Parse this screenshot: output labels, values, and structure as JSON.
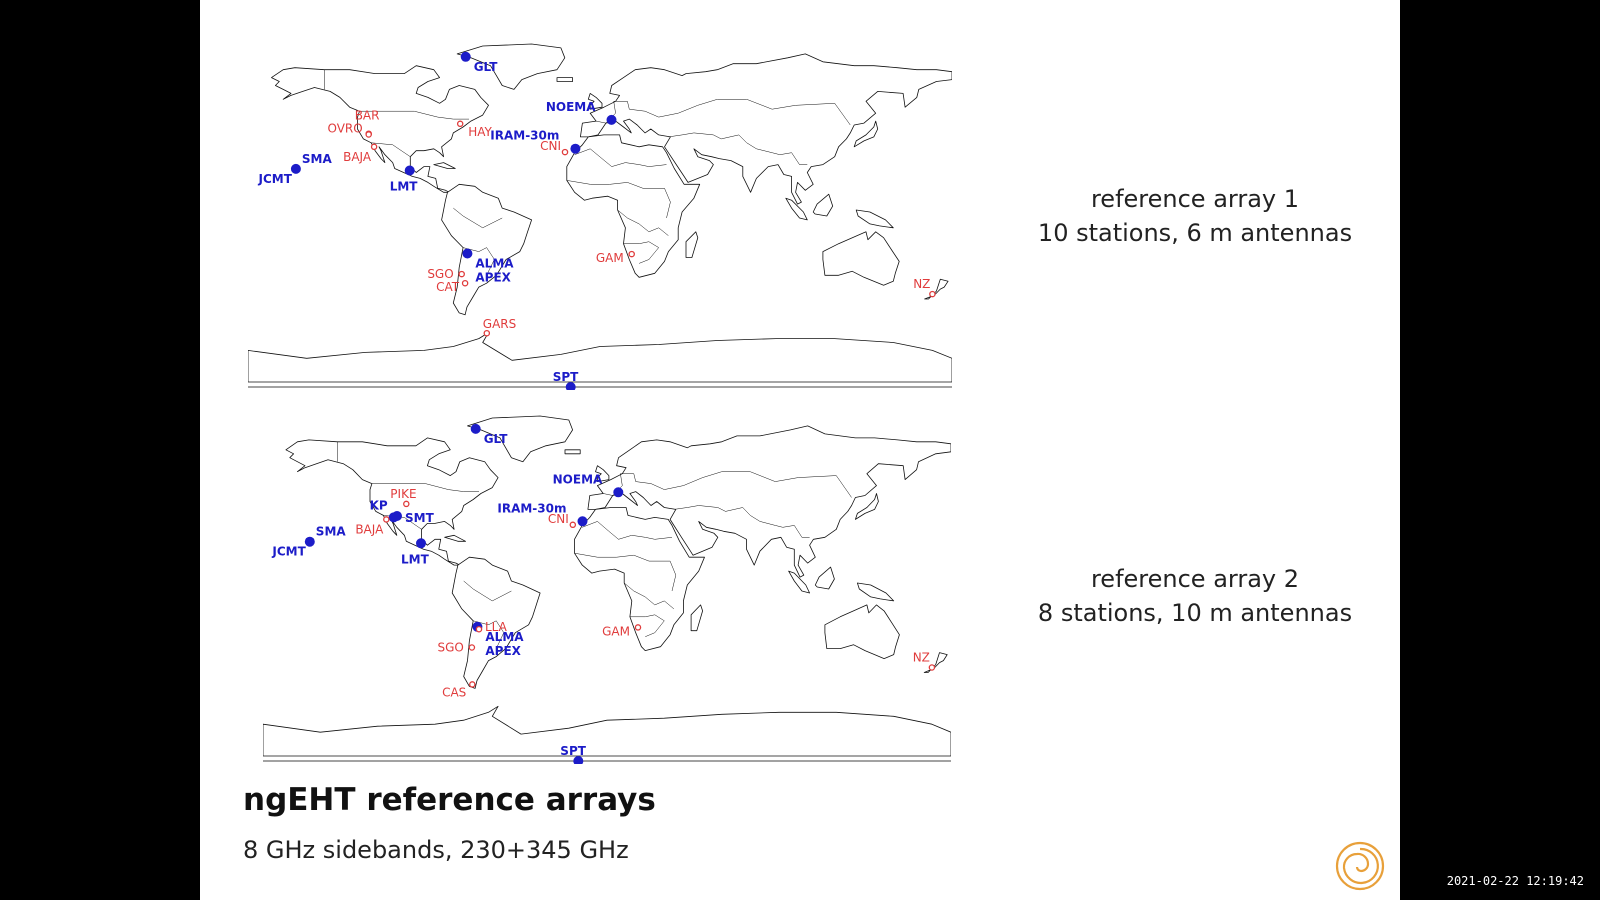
{
  "slide": {
    "title": "ngEHT reference arrays",
    "subtitle": "8 GHz sidebands, 230+345 GHz",
    "timestamp": "2021-02-22 12:19:42"
  },
  "maps": [
    {
      "caption_line1": "reference array 1",
      "caption_line2": "10 stations, 6 m antennas",
      "stations": [
        {
          "name": "GLT",
          "lon": -68.7,
          "lat": 76.5,
          "type": "existing"
        },
        {
          "name": "NOEMA",
          "lon": 5.9,
          "lat": 44.6,
          "type": "existing"
        },
        {
          "name": "IRAM-30m",
          "lon": -3.4,
          "lat": 37.1,
          "type": "existing"
        },
        {
          "name": "SMA",
          "lon": -155.5,
          "lat": 19.8,
          "type": "existing"
        },
        {
          "name": "JCMT",
          "lon": -155.5,
          "lat": 19.8,
          "type": "existing"
        },
        {
          "name": "LMT",
          "lon": -97.3,
          "lat": 19.0,
          "type": "existing"
        },
        {
          "name": "ALMA",
          "lon": -67.8,
          "lat": -23.0,
          "type": "existing"
        },
        {
          "name": "APEX",
          "lon": -67.8,
          "lat": -23.0,
          "type": "existing"
        },
        {
          "name": "SPT",
          "lon": 0,
          "lat": -90,
          "type": "existing"
        },
        {
          "name": "BAR",
          "lon": -118.3,
          "lat": 37.6,
          "type": "new"
        },
        {
          "name": "OVRO",
          "lon": -118.3,
          "lat": 37.2,
          "type": "new"
        },
        {
          "name": "BAJA",
          "lon": -115.5,
          "lat": 31.0,
          "type": "new"
        },
        {
          "name": "HAY",
          "lon": -71.5,
          "lat": 42.6,
          "type": "new"
        },
        {
          "name": "CNI",
          "lon": -17.9,
          "lat": 28.3,
          "type": "new"
        },
        {
          "name": "GAM",
          "lon": 16.2,
          "lat": -23.3,
          "type": "new"
        },
        {
          "name": "SGO",
          "lon": -70.7,
          "lat": -33.4,
          "type": "new"
        },
        {
          "name": "CAT",
          "lon": -69.0,
          "lat": -38.0,
          "type": "new"
        },
        {
          "name": "GARS",
          "lon": -57.9,
          "lat": -63.3,
          "type": "new"
        },
        {
          "name": "NZ",
          "lon": 170.0,
          "lat": -43.5,
          "type": "new"
        }
      ]
    },
    {
      "caption_line1": "reference array 2",
      "caption_line2": "8 stations, 10 m antennas",
      "stations": [
        {
          "name": "GLT",
          "lon": -68.7,
          "lat": 76.5,
          "type": "existing"
        },
        {
          "name": "NOEMA",
          "lon": 5.9,
          "lat": 44.6,
          "type": "existing"
        },
        {
          "name": "IRAM-30m",
          "lon": -3.4,
          "lat": 37.1,
          "type": "existing"
        },
        {
          "name": "SMA",
          "lon": -155.5,
          "lat": 19.8,
          "type": "existing"
        },
        {
          "name": "JCMT",
          "lon": -155.5,
          "lat": 19.8,
          "type": "existing"
        },
        {
          "name": "KP",
          "lon": -111.6,
          "lat": 32.0,
          "type": "existing"
        },
        {
          "name": "SMT",
          "lon": -109.9,
          "lat": 32.7,
          "type": "existing"
        },
        {
          "name": "LMT",
          "lon": -97.3,
          "lat": 19.0,
          "type": "existing"
        },
        {
          "name": "ALMA",
          "lon": -67.8,
          "lat": -23.0,
          "type": "existing"
        },
        {
          "name": "APEX",
          "lon": -67.8,
          "lat": -23.0,
          "type": "existing"
        },
        {
          "name": "SPT",
          "lon": 0,
          "lat": -90,
          "type": "existing"
        },
        {
          "name": "PIKE",
          "lon": -105.0,
          "lat": 38.8,
          "type": "new"
        },
        {
          "name": "BAJA",
          "lon": -115.5,
          "lat": 31.0,
          "type": "new"
        },
        {
          "name": "CNI",
          "lon": -17.9,
          "lat": 28.3,
          "type": "new"
        },
        {
          "name": "LLA",
          "lon": -67.0,
          "lat": -24.2,
          "type": "new"
        },
        {
          "name": "GAM",
          "lon": 16.2,
          "lat": -23.3,
          "type": "new"
        },
        {
          "name": "SGO",
          "lon": -70.7,
          "lat": -33.4,
          "type": "new"
        },
        {
          "name": "CAS",
          "lon": -70.5,
          "lat": -52.0,
          "type": "new"
        },
        {
          "name": "NZ",
          "lon": 170.0,
          "lat": -43.5,
          "type": "new"
        }
      ]
    }
  ],
  "colors": {
    "existing": "#1c1cc8",
    "new": "#e03c3c",
    "logo": "#e8a03a"
  },
  "icons": {
    "logo": "ngeht-spiral-logo-icon"
  }
}
